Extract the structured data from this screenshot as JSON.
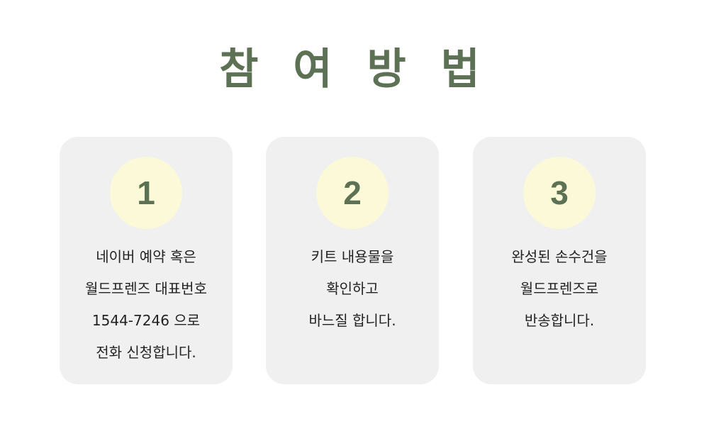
{
  "title": "참 여 방 법",
  "steps": [
    {
      "number": "1",
      "lines": [
        "네이버 예약 혹은",
        "월드프렌즈 대표번호",
        "1544-7246 으로",
        "전화 신청합니다."
      ]
    },
    {
      "number": "2",
      "lines": [
        "키트 내용물을",
        "확인하고",
        "바느질 합니다."
      ]
    },
    {
      "number": "3",
      "lines": [
        "완성된 손수건을",
        "월드프렌즈로",
        "반송합니다."
      ]
    }
  ],
  "colors": {
    "accent": "#5d7154",
    "card_background": "#f0f0f0",
    "number_circle": "#fcf9d9"
  }
}
